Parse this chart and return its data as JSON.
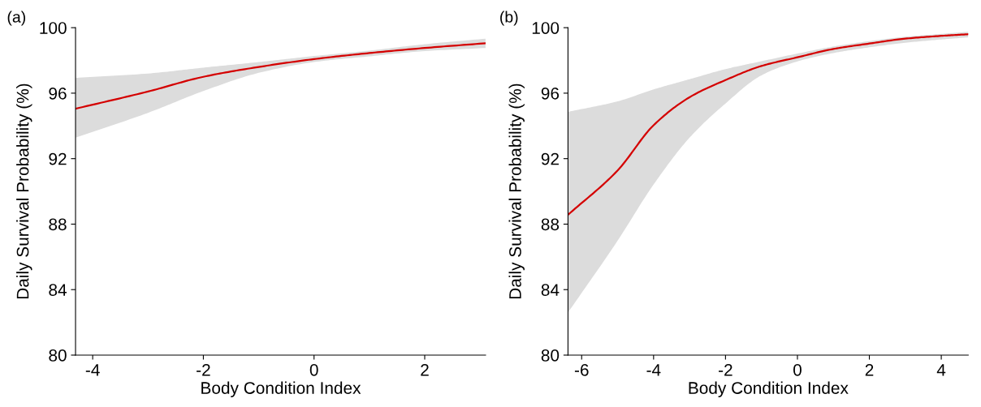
{
  "chart_data": [
    {
      "type": "line",
      "title": "(a)",
      "xlabel": "Body Condition Index",
      "ylabel": "Daily Survival Probability (%)",
      "x": [
        -4.31,
        -3,
        -2,
        -1,
        0,
        1,
        2,
        3.1
      ],
      "series": [
        {
          "color": "#d40000",
          "values": [
            95.05,
            96.1,
            97.0,
            97.6,
            98.08,
            98.45,
            98.76,
            99.05
          ],
          "lower": [
            93.28,
            94.8,
            96.13,
            97.24,
            97.9,
            98.25,
            98.57,
            98.76
          ],
          "upper": [
            96.93,
            97.2,
            97.56,
            97.9,
            98.27,
            98.6,
            98.99,
            99.33
          ]
        }
      ],
      "xlim": [
        -4.31,
        3.1
      ],
      "xticks": [
        -4,
        -2,
        0,
        2
      ],
      "ylim": [
        80,
        100
      ],
      "yticks": [
        80,
        84,
        88,
        92,
        96,
        100
      ],
      "grid": false
    },
    {
      "type": "line",
      "title": "(b)",
      "xlabel": "Body Condition Index",
      "ylabel": "Daily Survival Probability (%)",
      "x": [
        -6.38,
        -5,
        -4,
        -3,
        -2,
        -1,
        0,
        1,
        2,
        3,
        4,
        4.75
      ],
      "series": [
        {
          "color": "#d40000",
          "values": [
            88.57,
            91.28,
            94.04,
            95.75,
            96.8,
            97.66,
            98.19,
            98.7,
            99.03,
            99.33,
            99.5,
            99.6
          ],
          "lower": [
            82.6,
            86.99,
            90.42,
            93.28,
            95.37,
            97.09,
            97.94,
            98.45,
            98.8,
            99.08,
            99.28,
            99.41
          ],
          "upper": [
            94.86,
            95.5,
            96.23,
            96.85,
            97.47,
            97.95,
            98.42,
            98.85,
            99.18,
            99.45,
            99.62,
            99.75
          ]
        }
      ],
      "xlim": [
        -6.38,
        4.75
      ],
      "xticks": [
        -6,
        -4,
        -2,
        0,
        2,
        4
      ],
      "ylim": [
        80,
        100
      ],
      "yticks": [
        80,
        84,
        88,
        92,
        96,
        100
      ],
      "grid": false
    }
  ]
}
